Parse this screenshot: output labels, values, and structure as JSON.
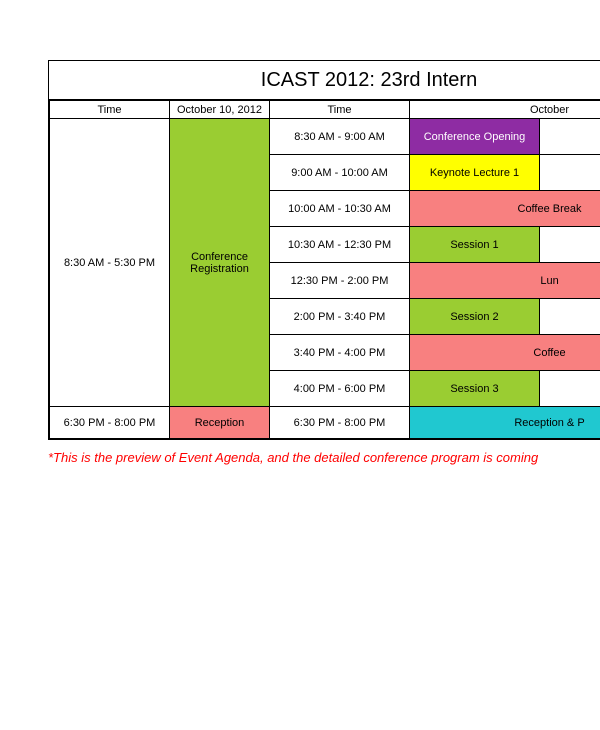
{
  "title": "ICAST 2012: 23rd Intern",
  "columns": {
    "time1": "Time",
    "date1": "October 10, 2012",
    "time2": "Time",
    "date2": "October"
  },
  "day1": {
    "main_time": "8:30 AM    -    5:30 PM",
    "main_event": "Conference Registration",
    "footer_time": "6:30 PM  -  8:00 PM",
    "footer_event": "Reception"
  },
  "day2": {
    "slots": [
      {
        "time": "8:30 AM  -  9:00 AM",
        "event": "Conference Opening",
        "bg": "#8e2ca3",
        "fg": "#ffffff",
        "span": 1
      },
      {
        "time": "9:00 AM  -  10:00 AM",
        "event": "Keynote Lecture 1",
        "bg": "#ffff00",
        "fg": "#000000",
        "span": 1
      },
      {
        "time": "10:00 AM  -  10:30 AM",
        "event": "Coffee Break",
        "bg": "#f88080",
        "fg": "#000000",
        "span": 2
      },
      {
        "time": "10:30 AM  -  12:30 PM",
        "event": "Session 1",
        "bg": "#9acd32",
        "fg": "#000000",
        "span": 1
      },
      {
        "time": "12:30 PM  -  2:00 PM",
        "event": "Lun",
        "bg": "#f88080",
        "fg": "#000000",
        "span": 2
      },
      {
        "time": "2:00 PM  -  3:40 PM",
        "event": "Session 2",
        "bg": "#9acd32",
        "fg": "#000000",
        "span": 1
      },
      {
        "time": "3:40 PM  -  4:00 PM",
        "event": "Coffee",
        "bg": "#f88080",
        "fg": "#000000",
        "span": 2
      },
      {
        "time": "4:00 PM  -  6:00 PM",
        "event": "Session 3",
        "bg": "#9acd32",
        "fg": "#000000",
        "span": 1
      }
    ],
    "footer_time": "6:30 PM  -  8:00 PM",
    "footer_event": "Reception & P"
  },
  "colors": {
    "registration_bg": "#9acd32",
    "reception_bg": "#f88080",
    "footer_event2_bg": "#20c8d0"
  },
  "footnote": "*This is the preview of Event Agenda, and the detailed conference program is coming"
}
